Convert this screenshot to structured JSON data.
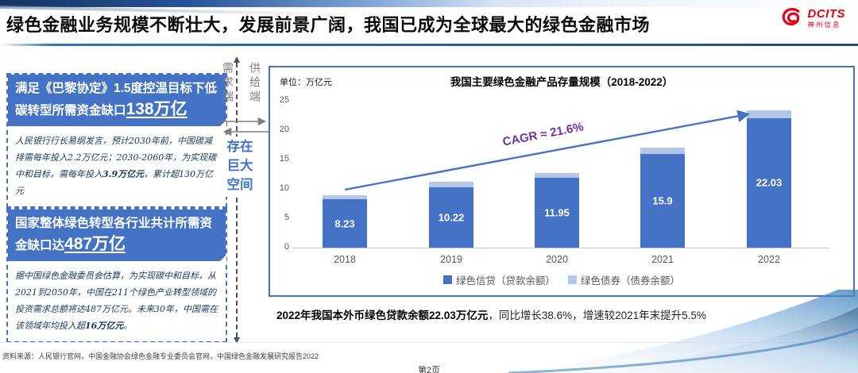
{
  "header": {
    "title": "绿色金融业务规模不断壮大，发展前景广阔，我国已成为全球最大的绿色金融市场",
    "logo_text": "DCITS",
    "logo_subtext": "神州信息"
  },
  "left_panel": {
    "boxes": [
      {
        "heading": "满足《巴黎协定》1.5度控温目标下低碳转型所需资金缺口",
        "heading_highlight": "138万亿",
        "body": [
          {
            "text": "人民银行行长易纲发言，预计2030年前，中国碳减排需每年投入2.2万亿元；2030-2060年，为实现碳中和目标，需每年投入",
            "bold": false
          },
          {
            "text": "3.9万亿元",
            "bold": true
          },
          {
            "text": "，累计超130万亿元",
            "bold": false
          }
        ]
      },
      {
        "heading": "国家整体绿色转型各行业共计所需资金缺口达",
        "heading_highlight": "487万亿",
        "body": [
          {
            "text": "据中国绿色金融委员会估算，为实现碳中和目标，从2021到2050年，中国在211个绿色产业转型领域的投资需求总额将达487万亿元。未来30年，中国需在该领域年均投入超",
            "bold": false
          },
          {
            "text": "16万亿元",
            "bold": true
          },
          {
            "text": "。",
            "bold": false
          }
        ]
      }
    ]
  },
  "middle": {
    "demand_label": "需求端",
    "supply_label": "供给端",
    "gap_label": "存在巨大空间"
  },
  "chart_data": {
    "type": "bar",
    "stacked": true,
    "title": "我国主要绿色金融产品存量规模（2018-2022）",
    "unit_label": "单位：万亿元",
    "categories": [
      "2018",
      "2019",
      "2020",
      "2021",
      "2022"
    ],
    "series": [
      {
        "name": "绿色信贷（贷款余额）",
        "color": "#4472C4",
        "values": [
          8.23,
          10.22,
          11.95,
          15.9,
          22.03
        ],
        "value_labels": [
          "8.23",
          "10.22",
          "11.95",
          "15.9",
          "22.03"
        ]
      },
      {
        "name": "绿色债券（债券余额）",
        "color": "#B4C7E7",
        "values": [
          0.7,
          1.0,
          0.8,
          1.1,
          1.4
        ]
      }
    ],
    "ylim": [
      0,
      25
    ],
    "yticks": [
      0,
      5,
      10,
      15,
      20,
      25
    ],
    "xlabel": "",
    "ylabel": "万亿元",
    "grid": false,
    "legend_position": "bottom",
    "annotation": "CAGR ≈ 21.6%",
    "annotation_color": "#7030A0"
  },
  "summary": {
    "bold": "2022年我国本外币绿色贷款余额22.03万亿元",
    "regular": "，同比增长38.6%，增速较2021年末提升5.5%"
  },
  "footer": {
    "source": "资料来源：人民银行官网，中国金融协会绿色金融专业委员会官网，中国绿色金融发展研究报告2022",
    "page": "第2页"
  },
  "colors": {
    "accent_blue": "#4472C4",
    "light_blue": "#B4C7E7",
    "annotation_purple": "#7030A0",
    "logo_red": "#E60012"
  }
}
